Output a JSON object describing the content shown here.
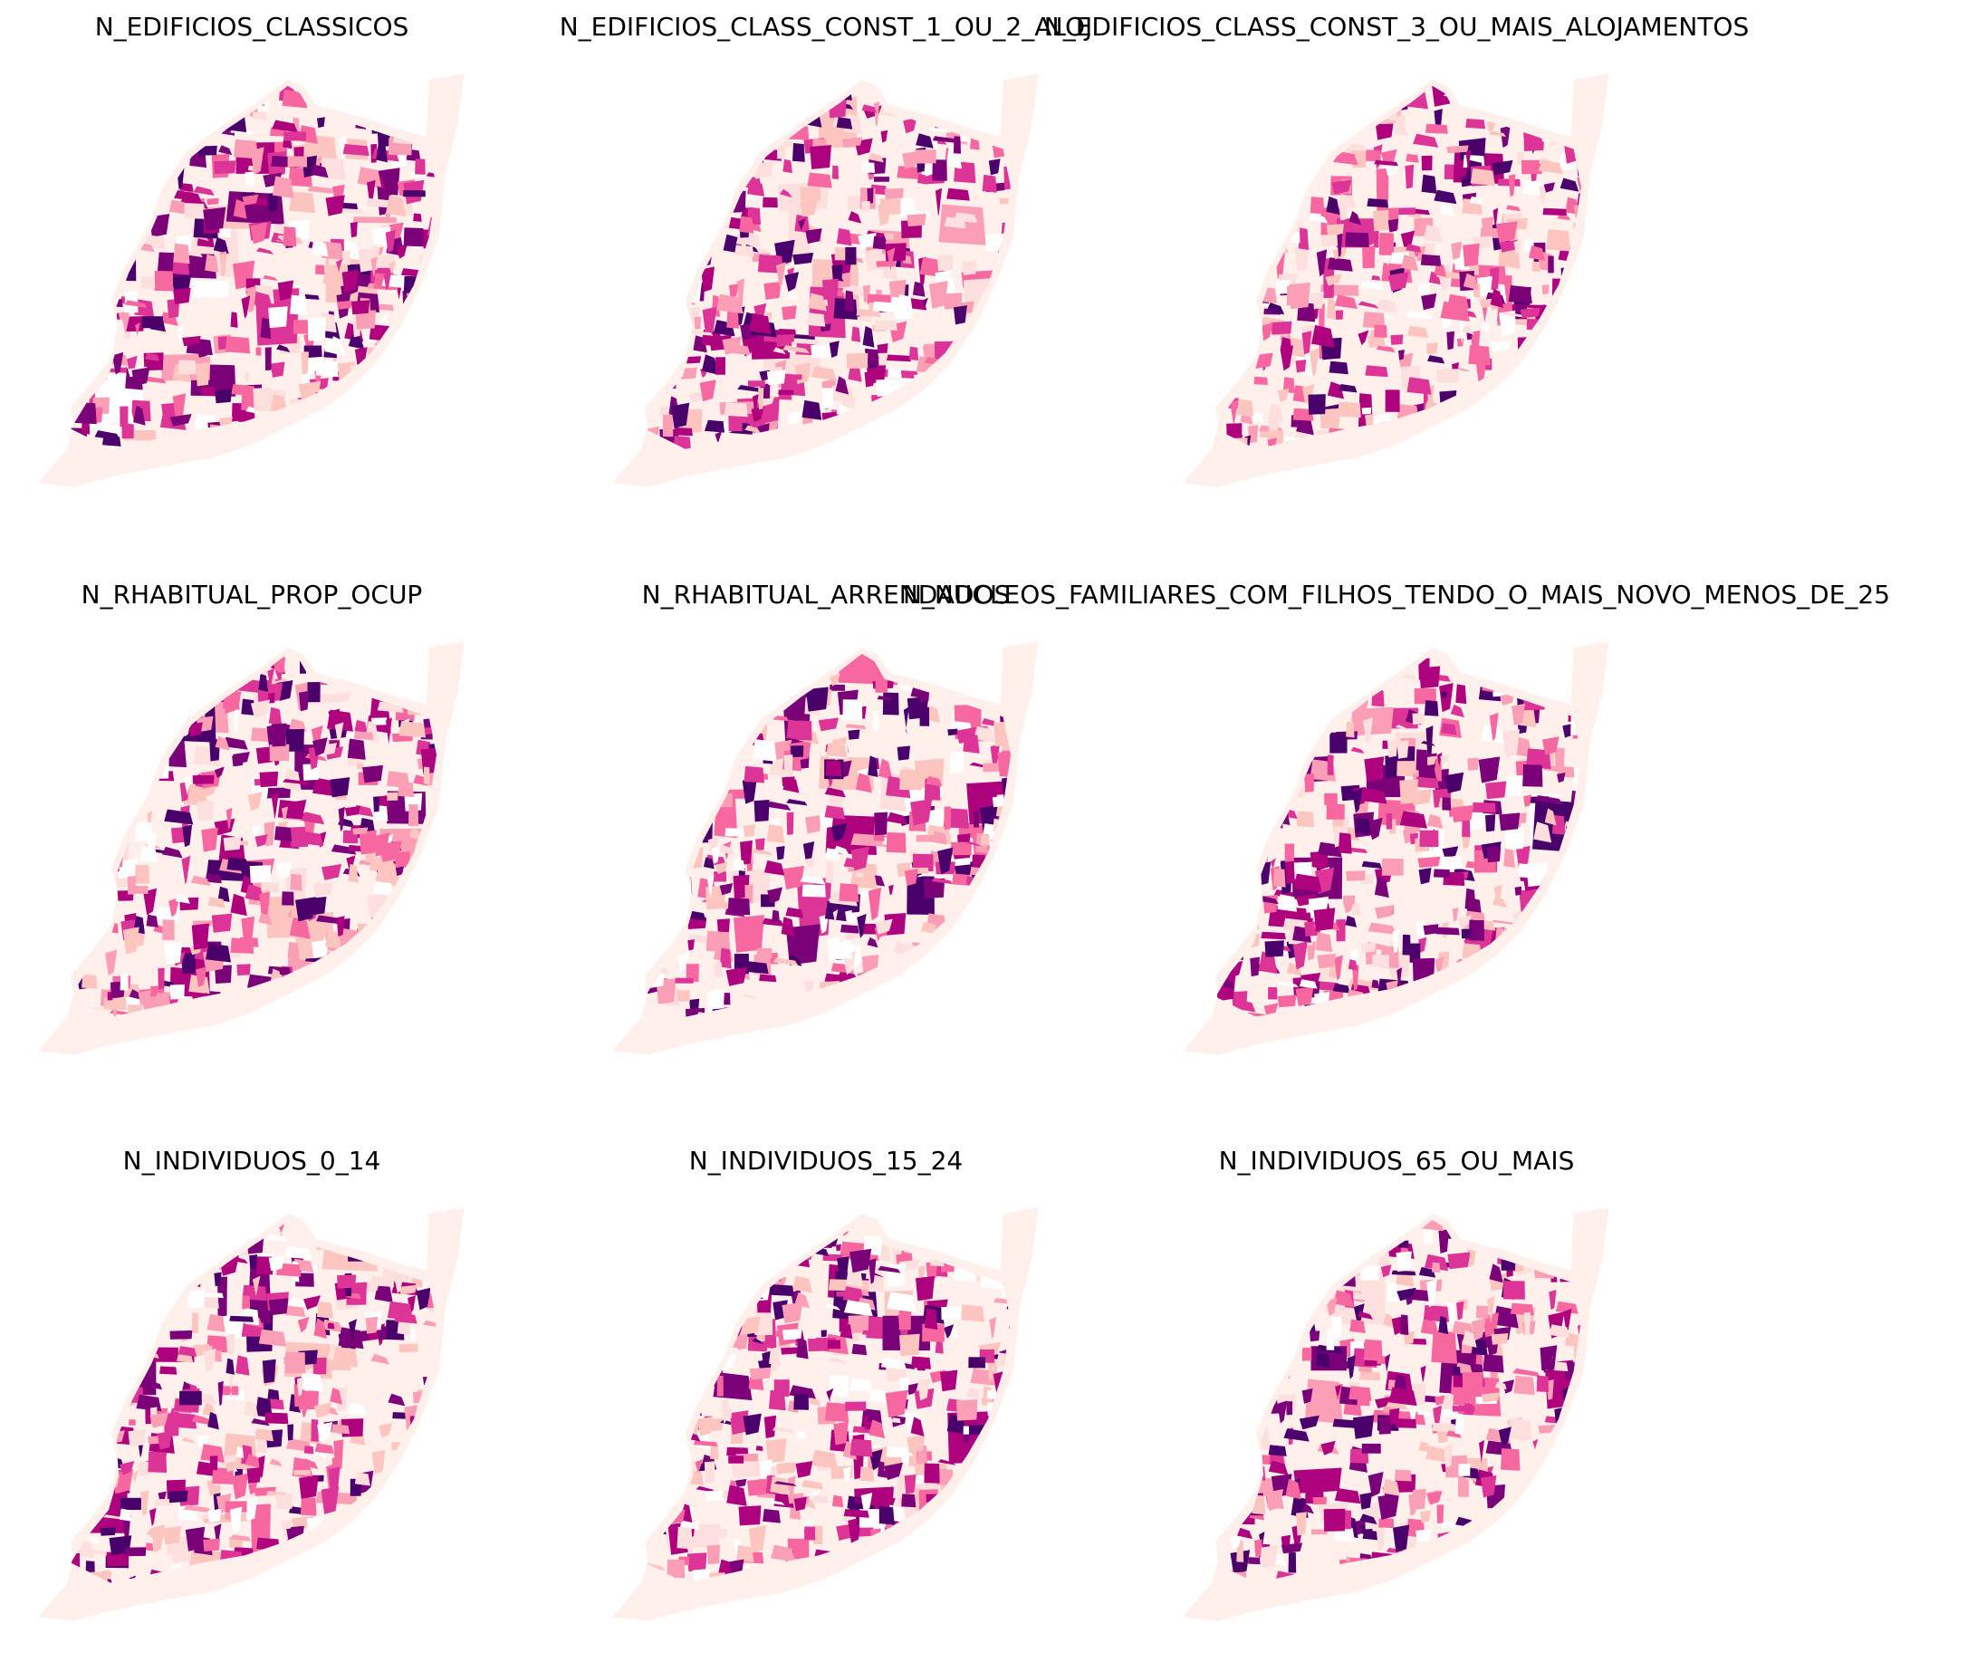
{
  "maps": [
    {
      "title": "N_EDIFICIOS_CLASSICOS"
    },
    {
      "title": "N_EDIFICIOS_CLASS_CONST_1_OU_2_ALOJ"
    },
    {
      "title": "N_EDIFICIOS_CLASS_CONST_3_OU_MAIS_ALOJAMENTOS"
    },
    {
      "title": "N_RHABITUAL_PROP_OCUP"
    },
    {
      "title": "N_RHABITUAL_ARRENDADOS"
    },
    {
      "title": "N_NUCLEOS_FAMILIARES_COM_FILHOS_TENDO_O_MAIS_NOVO_MENOS_DE_25"
    },
    {
      "title": "N_INDIVIDUOS_0_14"
    },
    {
      "title": "N_INDIVIDUOS_15_24"
    },
    {
      "title": "N_INDIVIDUOS_65_OU_MAIS"
    }
  ]
}
